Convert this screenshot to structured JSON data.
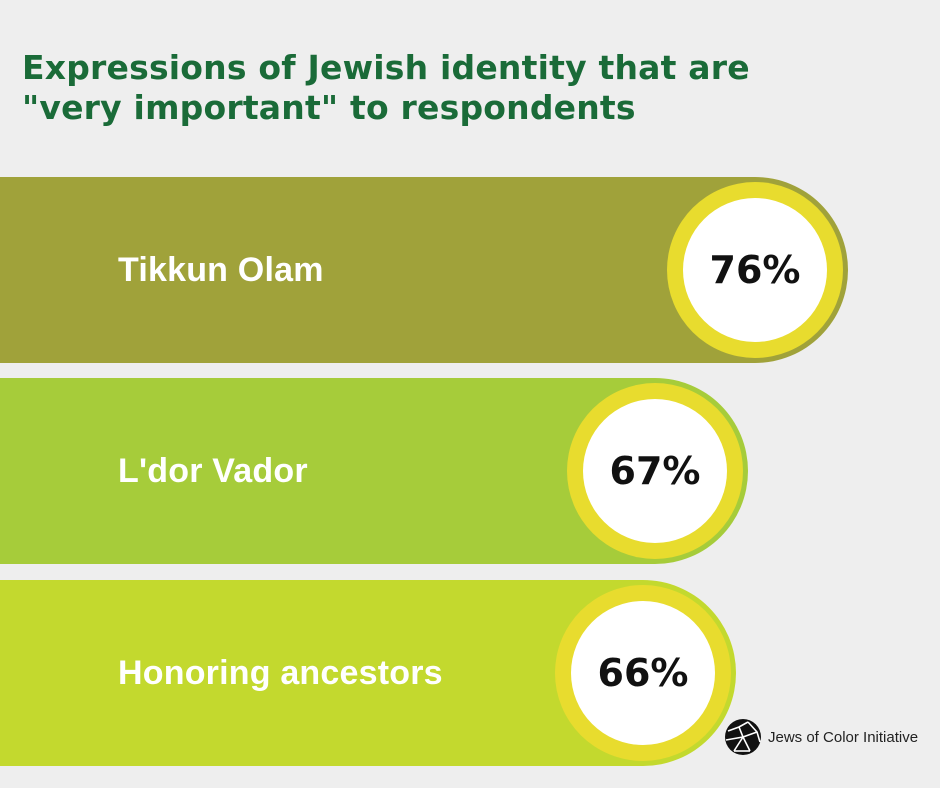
{
  "title_lines": [
    "Expressions of Jewish identity that are",
    "\"very important\" to respondents"
  ],
  "chart_data": {
    "type": "bar",
    "orientation": "horizontal",
    "title": "Expressions of Jewish identity that are \"very important\" to respondents",
    "categories": [
      "Tikkun Olam",
      "L'dor Vador",
      "Honoring ancestors"
    ],
    "values": [
      76,
      67,
      66
    ],
    "value_labels": [
      "76%",
      "67%",
      "66%"
    ],
    "unit": "%",
    "bar_colors": [
      "#a0a23a",
      "#a6cc3a",
      "#c3d92e"
    ],
    "ring_color": "#e8dc2e",
    "grid": false,
    "legend": "none"
  },
  "brand": {
    "name": "Jews of Color Initiative",
    "icon": "mosaic-globe-icon"
  },
  "colors": {
    "background": "#eeeeee",
    "title": "#1a6b38",
    "label": "#ffffff"
  }
}
